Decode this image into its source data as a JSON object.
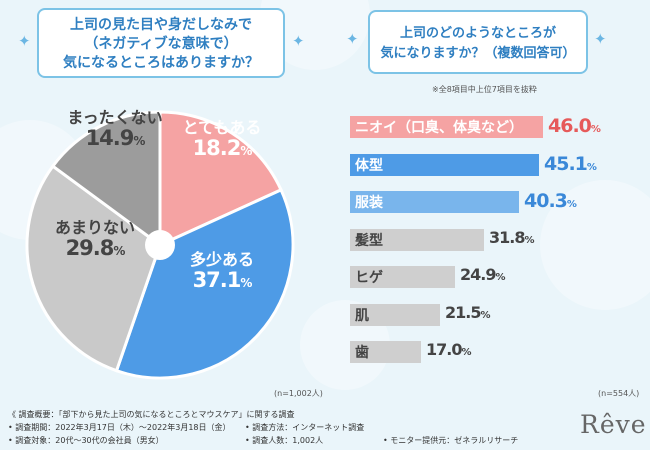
{
  "left_title": {
    "lines": [
      "上司の見た目や身だしなみで",
      "（ネガティブな意味で）",
      "気になるところはありますか？"
    ]
  },
  "right_title": {
    "lines": [
      "上司のどのようなところが",
      "気になりますか？（複数回答可）"
    ]
  },
  "right_note": "※全8項目中上位7項目を抜粋",
  "pie_n": "(n=1,002人)",
  "bar_n": "(n=554人)",
  "colors": {
    "pink": "#f5a3a3",
    "blue": "#4e9be6",
    "light_blue": "#79b5ec",
    "gray_light": "#c9c9c9",
    "gray_mid": "#b3b3b3",
    "gray_dark": "#9c9c9c",
    "accent_red": "#e65a5a",
    "accent_blue": "#3a88d8",
    "title_blue": "#2f7fc1"
  },
  "chart_data": [
    {
      "type": "pie",
      "title": "上司の見た目や身だしなみで（ネガティブな意味で）気になるところはありますか？",
      "slices": [
        {
          "label": "とてもある",
          "value": 18.2,
          "display": "18.2",
          "color": "#f5a3a3",
          "text_color": "#ffffff"
        },
        {
          "label": "多少ある",
          "value": 37.1,
          "display": "37.1",
          "color": "#4e9be6",
          "text_color": "#ffffff"
        },
        {
          "label": "あまりない",
          "value": 29.8,
          "display": "29.8",
          "color": "#c9c9c9",
          "text_color": "#444444"
        },
        {
          "label": "まったくない",
          "value": 14.9,
          "display": "14.9",
          "color": "#9c9c9c",
          "text_color": "#444444"
        }
      ],
      "unit": "%"
    },
    {
      "type": "bar",
      "orientation": "horizontal",
      "title": "上司のどのようなところが気になりますか？（複数回答可）",
      "categories": [
        "ニオイ（口臭、体臭など）",
        "体型",
        "服装",
        "髪型",
        "ヒゲ",
        "肌",
        "歯"
      ],
      "values": [
        46.0,
        45.1,
        40.3,
        31.8,
        24.9,
        21.5,
        17.0
      ],
      "display": [
        "46.0",
        "45.1",
        "40.3",
        "31.8",
        "24.9",
        "21.5",
        "17.0"
      ],
      "unit": "%",
      "xlim": [
        0,
        50
      ],
      "bar_colors": [
        "#f5a3a3",
        "#4e9be6",
        "#79b5ec",
        "#cfcfcf",
        "#cfcfcf",
        "#cfcfcf",
        "#cfcfcf"
      ],
      "label_colors": [
        "#ffffff",
        "#ffffff",
        "#ffffff",
        "#444444",
        "#444444",
        "#444444",
        "#444444"
      ],
      "value_colors": [
        "#e65a5a",
        "#3a88d8",
        "#3a88d8",
        "#444444",
        "#444444",
        "#444444",
        "#444444"
      ]
    }
  ],
  "footer": {
    "survey": "《 調査概要：「部下から見た上司の気になるところとマウスケア」に関する調査",
    "period": "• 調査期間：2022年3月17日（木）～2022年3月18日（金）",
    "method": "• 調査方法：インターネット調査",
    "target": "• 調査対象：20代～30代の会社員（男女）",
    "count": "• 調査人数：1,002人",
    "provider": "• モニター提供元：ゼネラルリサーチ"
  },
  "logo": "Rêve"
}
